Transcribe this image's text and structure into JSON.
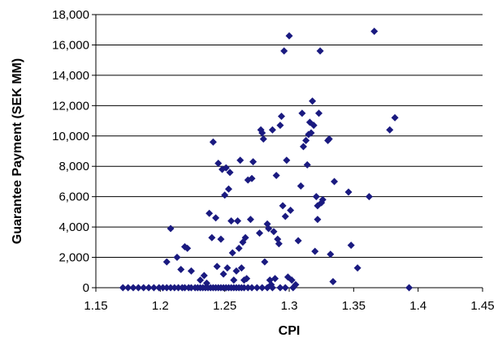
{
  "chart_data": {
    "type": "scatter",
    "title": "",
    "xlabel": "CPI",
    "ylabel": "Guarantee Payment (SEK MM)",
    "xlim": [
      1.15,
      1.45
    ],
    "ylim": [
      0,
      18000
    ],
    "x_ticks": [
      1.15,
      1.2,
      1.25,
      1.3,
      1.35,
      1.4,
      1.45
    ],
    "x_tick_labels": [
      "1.15",
      "1.2",
      "1.25",
      "1.3",
      "1.35",
      "1.4",
      "1.45"
    ],
    "y_ticks": [
      0,
      2000,
      4000,
      6000,
      8000,
      10000,
      12000,
      14000,
      16000,
      18000
    ],
    "y_tick_labels": [
      "0",
      "2,000",
      "4,000",
      "6,000",
      "8,000",
      "10,000",
      "12,000",
      "14,000",
      "16,000",
      "18,000"
    ],
    "grid": "horizontal",
    "marker": "diamond",
    "marker_color": "#1a1a80",
    "series": [
      {
        "points": [
          [
            1.171,
            0
          ],
          [
            1.175,
            0
          ],
          [
            1.179,
            0
          ],
          [
            1.183,
            0
          ],
          [
            1.187,
            0
          ],
          [
            1.191,
            0
          ],
          [
            1.195,
            0
          ],
          [
            1.199,
            0
          ],
          [
            1.202,
            0
          ],
          [
            1.205,
            0
          ],
          [
            1.208,
            0
          ],
          [
            1.211,
            0
          ],
          [
            1.214,
            0
          ],
          [
            1.217,
            0
          ],
          [
            1.219,
            0
          ],
          [
            1.222,
            0
          ],
          [
            1.224,
            0
          ],
          [
            1.227,
            0
          ],
          [
            1.229,
            0
          ],
          [
            1.231,
            0
          ],
          [
            1.233,
            0
          ],
          [
            1.235,
            0
          ],
          [
            1.237,
            0
          ],
          [
            1.239,
            0
          ],
          [
            1.241,
            0
          ],
          [
            1.243,
            0
          ],
          [
            1.245,
            0
          ],
          [
            1.247,
            0
          ],
          [
            1.249,
            0
          ],
          [
            1.251,
            0
          ],
          [
            1.253,
            0
          ],
          [
            1.255,
            0
          ],
          [
            1.257,
            0
          ],
          [
            1.259,
            0
          ],
          [
            1.261,
            0
          ],
          [
            1.263,
            0
          ],
          [
            1.265,
            0
          ],
          [
            1.268,
            0
          ],
          [
            1.271,
            0
          ],
          [
            1.275,
            0
          ],
          [
            1.279,
            0
          ],
          [
            1.283,
            0
          ],
          [
            1.287,
            0
          ],
          [
            1.293,
            0
          ],
          [
            1.297,
            0
          ],
          [
            1.303,
            0
          ],
          [
            1.393,
            0
          ],
          [
            1.208,
            3900
          ],
          [
            1.205,
            1700
          ],
          [
            1.213,
            2000
          ],
          [
            1.216,
            1200
          ],
          [
            1.219,
            2700
          ],
          [
            1.221,
            2600
          ],
          [
            1.224,
            1100
          ],
          [
            1.231,
            500
          ],
          [
            1.234,
            800
          ],
          [
            1.236,
            300
          ],
          [
            1.238,
            4900
          ],
          [
            1.24,
            3300
          ],
          [
            1.241,
            9600
          ],
          [
            1.243,
            4600
          ],
          [
            1.244,
            1400
          ],
          [
            1.245,
            8200
          ],
          [
            1.247,
            3200
          ],
          [
            1.248,
            7800
          ],
          [
            1.249,
            900
          ],
          [
            1.25,
            6100
          ],
          [
            1.251,
            7900
          ],
          [
            1.252,
            1300
          ],
          [
            1.253,
            6500
          ],
          [
            1.254,
            7600
          ],
          [
            1.255,
            4400
          ],
          [
            1.256,
            2300
          ],
          [
            1.257,
            500
          ],
          [
            1.259,
            1100
          ],
          [
            1.26,
            4400
          ],
          [
            1.261,
            2600
          ],
          [
            1.262,
            8400
          ],
          [
            1.263,
            1300
          ],
          [
            1.264,
            3000
          ],
          [
            1.265,
            500
          ],
          [
            1.266,
            3300
          ],
          [
            1.267,
            600
          ],
          [
            1.268,
            7100
          ],
          [
            1.27,
            4500
          ],
          [
            1.271,
            7200
          ],
          [
            1.272,
            8300
          ],
          [
            1.277,
            3600
          ],
          [
            1.278,
            10400
          ],
          [
            1.279,
            10200
          ],
          [
            1.28,
            9800
          ],
          [
            1.281,
            1700
          ],
          [
            1.283,
            4200
          ],
          [
            1.284,
            3900
          ],
          [
            1.285,
            500
          ],
          [
            1.286,
            200
          ],
          [
            1.287,
            10400
          ],
          [
            1.288,
            3700
          ],
          [
            1.289,
            600
          ],
          [
            1.29,
            7400
          ],
          [
            1.291,
            3200
          ],
          [
            1.292,
            2900
          ],
          [
            1.293,
            10700
          ],
          [
            1.294,
            11300
          ],
          [
            1.295,
            5400
          ],
          [
            1.296,
            15600
          ],
          [
            1.297,
            4700
          ],
          [
            1.298,
            8400
          ],
          [
            1.299,
            700
          ],
          [
            1.3,
            16600
          ],
          [
            1.301,
            5100
          ],
          [
            1.302,
            500
          ],
          [
            1.305,
            200
          ],
          [
            1.307,
            3100
          ],
          [
            1.309,
            6700
          ],
          [
            1.31,
            11500
          ],
          [
            1.311,
            9300
          ],
          [
            1.313,
            9700
          ],
          [
            1.314,
            8100
          ],
          [
            1.315,
            10100
          ],
          [
            1.316,
            10900
          ],
          [
            1.317,
            10200
          ],
          [
            1.318,
            12300
          ],
          [
            1.319,
            10700
          ],
          [
            1.32,
            2400
          ],
          [
            1.321,
            6000
          ],
          [
            1.322,
            4500
          ],
          [
            1.322,
            5400
          ],
          [
            1.323,
            11500
          ],
          [
            1.324,
            15600
          ],
          [
            1.325,
            5600
          ],
          [
            1.326,
            5800
          ],
          [
            1.33,
            9700
          ],
          [
            1.331,
            9800
          ],
          [
            1.332,
            2200
          ],
          [
            1.334,
            400
          ],
          [
            1.335,
            7000
          ],
          [
            1.346,
            6300
          ],
          [
            1.348,
            2800
          ],
          [
            1.353,
            1300
          ],
          [
            1.362,
            6000
          ],
          [
            1.366,
            16900
          ],
          [
            1.378,
            10400
          ],
          [
            1.382,
            11200
          ]
        ]
      }
    ]
  }
}
